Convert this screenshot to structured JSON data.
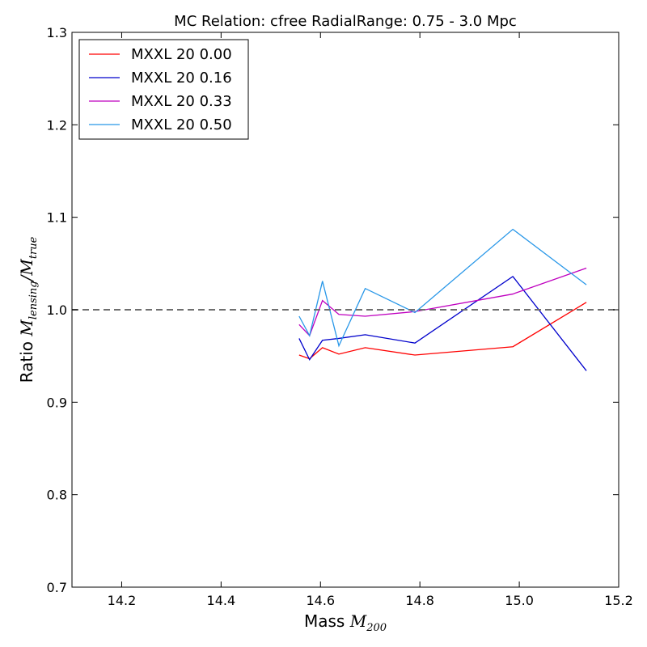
{
  "chart_data": {
    "type": "line",
    "title": "MC Relation: cfree RadialRange: 0.75 - 3.0 Mpc",
    "xlabel": {
      "text": "Mass ",
      "math": "M",
      "sub": "200"
    },
    "ylabel": {
      "text": "Ratio ",
      "math1": "M",
      "sub1": "lensing",
      "slash": "/",
      "math2": "M",
      "sub2": "true"
    },
    "xlim": [
      14.1,
      15.2
    ],
    "ylim": [
      0.7,
      1.3
    ],
    "xticks": [
      14.2,
      14.4,
      14.6,
      14.8,
      15.0,
      15.2
    ],
    "xtick_labels": [
      "14.2",
      "14.4",
      "14.6",
      "14.8",
      "15.0",
      "15.2"
    ],
    "yticks": [
      0.7,
      0.8,
      0.9,
      1.0,
      1.1,
      1.2,
      1.3
    ],
    "ytick_labels": [
      "0.7",
      "0.8",
      "0.9",
      "1.0",
      "1.1",
      "1.2",
      "1.3"
    ],
    "grid": false,
    "legend_position": "top-left",
    "reference_line": {
      "y": 1.0,
      "style": "dashed",
      "color": "#6e6e6e"
    },
    "x": [
      14.557,
      14.578,
      14.604,
      14.637,
      14.69,
      14.79,
      14.987,
      15.135
    ],
    "series": [
      {
        "name": "MXXL 20 0.00",
        "color": "#ff0000",
        "values": [
          0.951,
          0.947,
          0.959,
          0.952,
          0.959,
          0.951,
          0.96,
          1.008
        ]
      },
      {
        "name": "MXXL 20 0.16",
        "color": "#0000cc",
        "values": [
          0.969,
          0.946,
          0.967,
          0.969,
          0.973,
          0.964,
          1.036,
          0.934
        ]
      },
      {
        "name": "MXXL 20 0.33",
        "color": "#bf00bf",
        "values": [
          0.984,
          0.972,
          1.01,
          0.995,
          0.993,
          0.998,
          1.017,
          1.045
        ]
      },
      {
        "name": "MXXL 20 0.50",
        "color": "#2897e8",
        "values": [
          0.993,
          0.972,
          1.031,
          0.961,
          1.023,
          0.997,
          1.087,
          1.027
        ]
      }
    ]
  }
}
